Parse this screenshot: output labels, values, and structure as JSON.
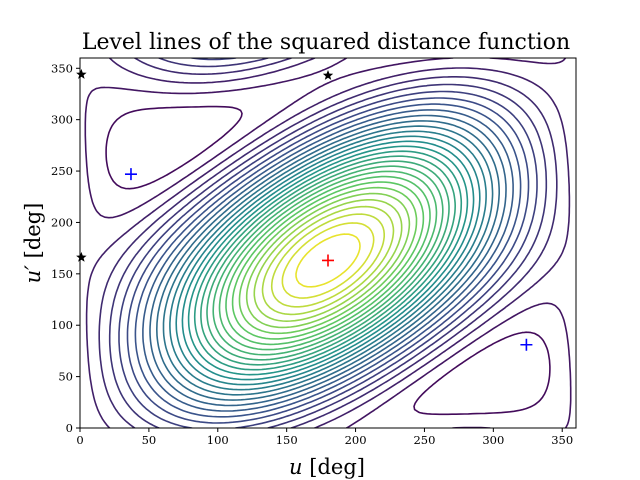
{
  "chart_data": {
    "type": "contour",
    "title": "Level lines of the squared distance function",
    "xlabel": "u [deg]",
    "ylabel": "u′ [deg]",
    "xlabel_parts": {
      "var": "u",
      "unit": "[deg]"
    },
    "ylabel_parts": {
      "var": "u′",
      "unit": "[deg]"
    },
    "xlim": [
      0,
      360
    ],
    "ylim": [
      0,
      360
    ],
    "xticks": [
      0,
      50,
      100,
      150,
      200,
      250,
      300,
      350
    ],
    "yticks": [
      0,
      50,
      100,
      150,
      200,
      250,
      300,
      350
    ],
    "colormap": [
      "#440154",
      "#3b528b",
      "#21918c",
      "#5ec962",
      "#fde725"
    ],
    "n_levels": 30,
    "maximum": {
      "x": 180,
      "y": 163,
      "marker": "+",
      "color": "#ff0000"
    },
    "saddles": [
      {
        "x": 37,
        "y": 247,
        "marker": "+",
        "color": "#0000ff"
      },
      {
        "x": 324,
        "y": 81,
        "marker": "+",
        "color": "#0000ff"
      }
    ],
    "minima": [
      {
        "x": 1,
        "y": 344,
        "marker": "star",
        "color": "#000000"
      },
      {
        "x": 180,
        "y": 343,
        "marker": "star",
        "color": "#000000"
      },
      {
        "x": 1,
        "y": 166,
        "marker": "star",
        "color": "#000000"
      }
    ]
  }
}
